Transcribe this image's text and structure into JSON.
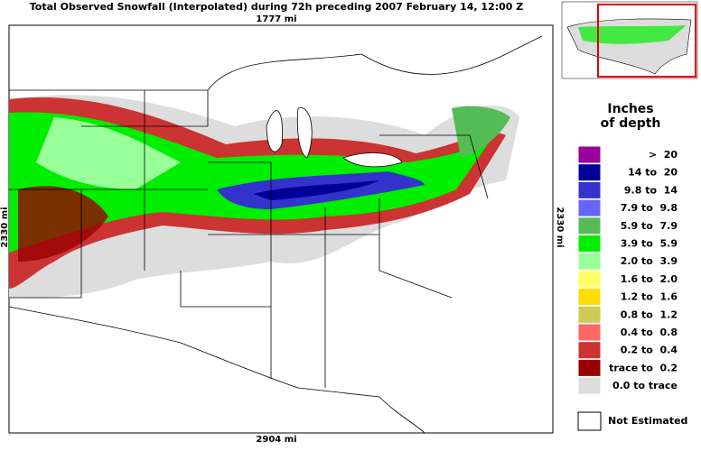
{
  "header": {
    "title": "Total Observed Snowfall (Interpolated) during 72h preceding 2007 February 14, 12:00 Z"
  },
  "map": {
    "top_label": "1777 mi",
    "bottom_label": "2904 mi",
    "left_label": "2330 mi",
    "right_label": "2330 mi"
  },
  "legend": {
    "title_line1": "Inches",
    "title_line2": "of depth",
    "items": [
      {
        "label": ">  20",
        "color": "#990099"
      },
      {
        "label": "14 to  20",
        "color": "#000099"
      },
      {
        "label": "9.8 to  14",
        "color": "#3333cc"
      },
      {
        "label": "7.9 to  9.8",
        "color": "#6666ff"
      },
      {
        "label": "5.9 to  7.9",
        "color": "#55bb55"
      },
      {
        "label": "3.9 to  5.9",
        "color": "#00ee00"
      },
      {
        "label": "2.0 to  3.9",
        "color": "#99ff99"
      },
      {
        "label": "1.6 to  2.0",
        "color": "#ffff66"
      },
      {
        "label": "1.2 to  1.6",
        "color": "#ffdd00"
      },
      {
        "label": "0.8 to  1.2",
        "color": "#cccc55"
      },
      {
        "label": "0.4 to  0.8",
        "color": "#ff6666"
      },
      {
        "label": "0.2 to  0.4",
        "color": "#cc3333"
      },
      {
        "label": "trace to  0.2",
        "color": "#990000"
      },
      {
        "label": "0.0 to trace",
        "color": "#dddddd"
      }
    ],
    "not_estimated": "Not Estimated"
  }
}
